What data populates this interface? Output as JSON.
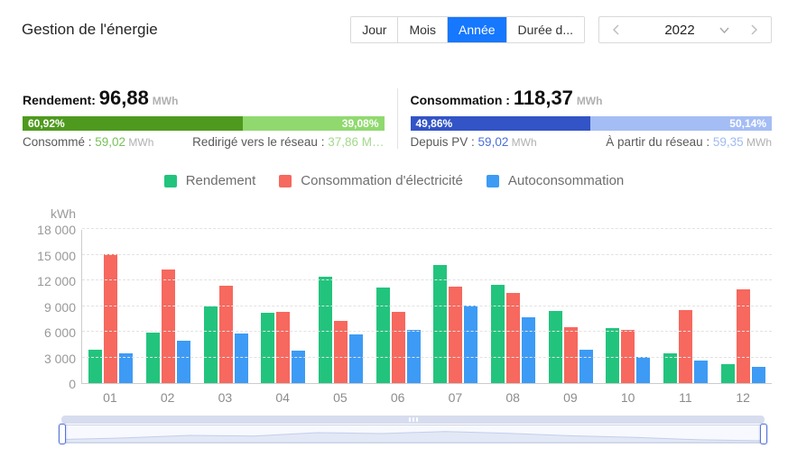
{
  "header": {
    "title": "Gestion de l'énergie",
    "accent_color": "#1677ff",
    "tabs": [
      {
        "label": "Jour",
        "active": false
      },
      {
        "label": "Mois",
        "active": false
      },
      {
        "label": "Année",
        "active": true
      },
      {
        "label": "Durée d...",
        "active": false
      }
    ],
    "year": "2022"
  },
  "stats": {
    "yield": {
      "label": "Rendement:",
      "value": "96,88",
      "unit": "MWh",
      "bar": {
        "left_pct": "60,92%",
        "right_pct": "39,08%",
        "left_ratio": 60.92,
        "dark_color": "#4e9a1e",
        "light_color": "#90d96f"
      },
      "left_item": {
        "label": "Consommé : ",
        "value": "59,02",
        "unit": " MWh"
      },
      "right_item": {
        "label": "Redirigé vers le réseau : ",
        "value": "37,86",
        "unit": " M…"
      }
    },
    "consumption": {
      "label": "Consommation : ",
      "value": "118,37",
      "unit": "MWh",
      "bar": {
        "left_pct": "49,86%",
        "right_pct": "50,14%",
        "left_ratio": 49.86,
        "dark_color": "#3354c6",
        "light_color": "#a4bdf4"
      },
      "left_item": {
        "label": "Depuis PV : ",
        "value": "59,02",
        "unit": " MWh"
      },
      "right_item": {
        "label": "À partir du réseau : ",
        "value": "59,35",
        "unit": " MWh"
      }
    }
  },
  "chart_data": {
    "type": "bar",
    "unit_label": "kWh",
    "categories": [
      "01",
      "02",
      "03",
      "04",
      "05",
      "06",
      "07",
      "08",
      "09",
      "10",
      "11",
      "12"
    ],
    "series": [
      {
        "name": "Rendement",
        "color": "#22c47d",
        "values": [
          3900,
          5900,
          9000,
          8200,
          12400,
          11200,
          13800,
          11500,
          8400,
          6400,
          3500,
          2200
        ]
      },
      {
        "name": "Consommation d'électricité",
        "color": "#f7685e",
        "values": [
          15100,
          13300,
          11400,
          8300,
          7300,
          8300,
          11300,
          10500,
          6500,
          6200,
          8500,
          11000
        ]
      },
      {
        "name": "Autoconsommation",
        "color": "#3d9bf5",
        "values": [
          3500,
          4900,
          5800,
          3800,
          5700,
          6200,
          9100,
          7700,
          3900,
          3100,
          2600,
          1900
        ]
      }
    ],
    "ylim": [
      0,
      18000
    ],
    "ytick_step": 3000,
    "ytick_labels": [
      "0",
      "3 000",
      "6 000",
      "9 000",
      "12 000",
      "15 000",
      "18 000"
    ],
    "grid": "horizontal dashed",
    "legend_position": "top center"
  }
}
